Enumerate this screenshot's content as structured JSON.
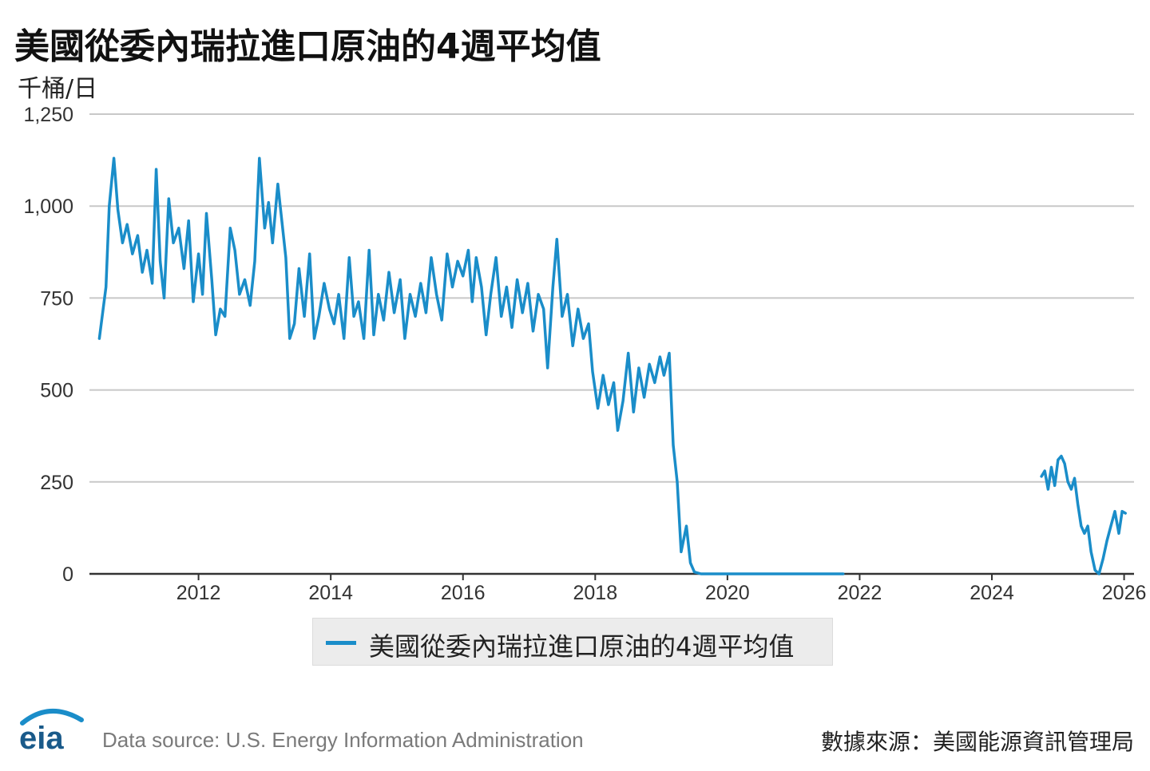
{
  "title": "美國從委內瑞拉進口原油的4週平均值",
  "unit_label": "千桶/日",
  "legend_label": "美國從委內瑞拉進口原油的4週平均值",
  "source": "Data source: U.S. Energy Information Administration",
  "credit": "數據來源：美國能源資訊管理局",
  "logo_text": "eia",
  "colors": {
    "series": "#1a8dc9",
    "grid": "#c8c8c8",
    "axis": "#333333"
  },
  "chart_data": {
    "type": "line",
    "title": "美國從委內瑞拉進口原油的4週平均值",
    "ylabel": "千桶/日",
    "xlabel": "",
    "ylim": [
      0,
      1250
    ],
    "xlim": [
      2010.35,
      2026.15
    ],
    "yticks": [
      0,
      250,
      500,
      750,
      1000,
      1250
    ],
    "ytick_labels": [
      "0",
      "250",
      "500",
      "750",
      "1,000",
      "1,250"
    ],
    "xticks": [
      2012,
      2014,
      2016,
      2018,
      2020,
      2022,
      2024,
      2026
    ],
    "xtick_labels": [
      "2012",
      "2014",
      "2016",
      "2018",
      "2020",
      "2022",
      "2024",
      "2026"
    ],
    "grid": true,
    "legend_position": "bottom-center",
    "series": [
      {
        "name": "美國從委內瑞拉進口原油的4週平均值",
        "segments": [
          [
            [
              2010.5,
              640
            ],
            [
              2010.6,
              780
            ],
            [
              2010.65,
              1000
            ],
            [
              2010.72,
              1130
            ],
            [
              2010.78,
              990
            ],
            [
              2010.85,
              900
            ],
            [
              2010.92,
              950
            ],
            [
              2011.0,
              870
            ],
            [
              2011.08,
              920
            ],
            [
              2011.15,
              820
            ],
            [
              2011.22,
              880
            ],
            [
              2011.3,
              790
            ],
            [
              2011.36,
              1100
            ],
            [
              2011.42,
              850
            ],
            [
              2011.48,
              750
            ],
            [
              2011.55,
              1020
            ],
            [
              2011.62,
              900
            ],
            [
              2011.7,
              940
            ],
            [
              2011.78,
              830
            ],
            [
              2011.85,
              960
            ],
            [
              2011.92,
              740
            ],
            [
              2012.0,
              870
            ],
            [
              2012.06,
              760
            ],
            [
              2012.12,
              980
            ],
            [
              2012.2,
              800
            ],
            [
              2012.26,
              650
            ],
            [
              2012.33,
              720
            ],
            [
              2012.4,
              700
            ],
            [
              2012.48,
              940
            ],
            [
              2012.55,
              880
            ],
            [
              2012.62,
              760
            ],
            [
              2012.7,
              800
            ],
            [
              2012.78,
              730
            ],
            [
              2012.85,
              850
            ],
            [
              2012.92,
              1130
            ],
            [
              2013.0,
              940
            ],
            [
              2013.06,
              1010
            ],
            [
              2013.12,
              900
            ],
            [
              2013.2,
              1060
            ],
            [
              2013.26,
              960
            ],
            [
              2013.32,
              860
            ],
            [
              2013.38,
              640
            ],
            [
              2013.45,
              680
            ],
            [
              2013.52,
              830
            ],
            [
              2013.6,
              700
            ],
            [
              2013.68,
              870
            ],
            [
              2013.75,
              640
            ],
            [
              2013.82,
              700
            ],
            [
              2013.9,
              790
            ],
            [
              2013.98,
              720
            ],
            [
              2014.05,
              680
            ],
            [
              2014.12,
              760
            ],
            [
              2014.2,
              640
            ],
            [
              2014.28,
              860
            ],
            [
              2014.35,
              700
            ],
            [
              2014.42,
              740
            ],
            [
              2014.5,
              640
            ],
            [
              2014.58,
              880
            ],
            [
              2014.65,
              650
            ],
            [
              2014.72,
              760
            ],
            [
              2014.8,
              690
            ],
            [
              2014.88,
              820
            ],
            [
              2014.96,
              710
            ],
            [
              2015.05,
              800
            ],
            [
              2015.12,
              640
            ],
            [
              2015.2,
              760
            ],
            [
              2015.28,
              700
            ],
            [
              2015.36,
              790
            ],
            [
              2015.44,
              710
            ],
            [
              2015.52,
              860
            ],
            [
              2015.6,
              760
            ],
            [
              2015.68,
              690
            ],
            [
              2015.76,
              870
            ],
            [
              2015.84,
              780
            ],
            [
              2015.92,
              850
            ],
            [
              2016.0,
              810
            ],
            [
              2016.08,
              880
            ],
            [
              2016.14,
              740
            ],
            [
              2016.2,
              860
            ],
            [
              2016.28,
              780
            ],
            [
              2016.35,
              650
            ],
            [
              2016.42,
              760
            ],
            [
              2016.5,
              860
            ],
            [
              2016.58,
              700
            ],
            [
              2016.66,
              780
            ],
            [
              2016.74,
              670
            ],
            [
              2016.82,
              800
            ],
            [
              2016.9,
              710
            ],
            [
              2016.98,
              790
            ],
            [
              2017.06,
              660
            ],
            [
              2017.14,
              760
            ],
            [
              2017.22,
              720
            ],
            [
              2017.28,
              560
            ],
            [
              2017.36,
              780
            ],
            [
              2017.42,
              910
            ],
            [
              2017.5,
              700
            ],
            [
              2017.58,
              760
            ],
            [
              2017.66,
              620
            ],
            [
              2017.74,
              720
            ],
            [
              2017.82,
              640
            ],
            [
              2017.9,
              680
            ],
            [
              2017.96,
              550
            ],
            [
              2018.04,
              450
            ],
            [
              2018.12,
              540
            ],
            [
              2018.2,
              460
            ],
            [
              2018.28,
              520
            ],
            [
              2018.34,
              390
            ],
            [
              2018.42,
              470
            ],
            [
              2018.5,
              600
            ],
            [
              2018.58,
              440
            ],
            [
              2018.66,
              560
            ],
            [
              2018.74,
              480
            ],
            [
              2018.82,
              570
            ],
            [
              2018.9,
              520
            ],
            [
              2018.98,
              590
            ],
            [
              2019.04,
              540
            ],
            [
              2019.12,
              600
            ],
            [
              2019.18,
              350
            ],
            [
              2019.24,
              250
            ],
            [
              2019.3,
              60
            ],
            [
              2019.38,
              130
            ],
            [
              2019.44,
              30
            ],
            [
              2019.5,
              5
            ],
            [
              2019.6,
              0
            ],
            [
              2020.0,
              0
            ],
            [
              2020.5,
              0
            ],
            [
              2021.0,
              0
            ],
            [
              2021.5,
              0
            ],
            [
              2021.75,
              0
            ]
          ],
          [
            [
              2024.75,
              265
            ],
            [
              2024.8,
              280
            ],
            [
              2024.85,
              230
            ],
            [
              2024.9,
              290
            ],
            [
              2024.95,
              240
            ],
            [
              2025.0,
              310
            ],
            [
              2025.05,
              320
            ],
            [
              2025.1,
              300
            ],
            [
              2025.15,
              250
            ],
            [
              2025.2,
              230
            ],
            [
              2025.25,
              260
            ],
            [
              2025.3,
              190
            ],
            [
              2025.35,
              130
            ],
            [
              2025.4,
              110
            ],
            [
              2025.45,
              130
            ],
            [
              2025.5,
              60
            ],
            [
              2025.56,
              10
            ],
            [
              2025.62,
              0
            ],
            [
              2025.68,
              40
            ],
            [
              2025.74,
              90
            ],
            [
              2025.8,
              130
            ],
            [
              2025.86,
              170
            ],
            [
              2025.92,
              110
            ],
            [
              2025.97,
              170
            ],
            [
              2026.02,
              165
            ]
          ]
        ]
      }
    ]
  }
}
